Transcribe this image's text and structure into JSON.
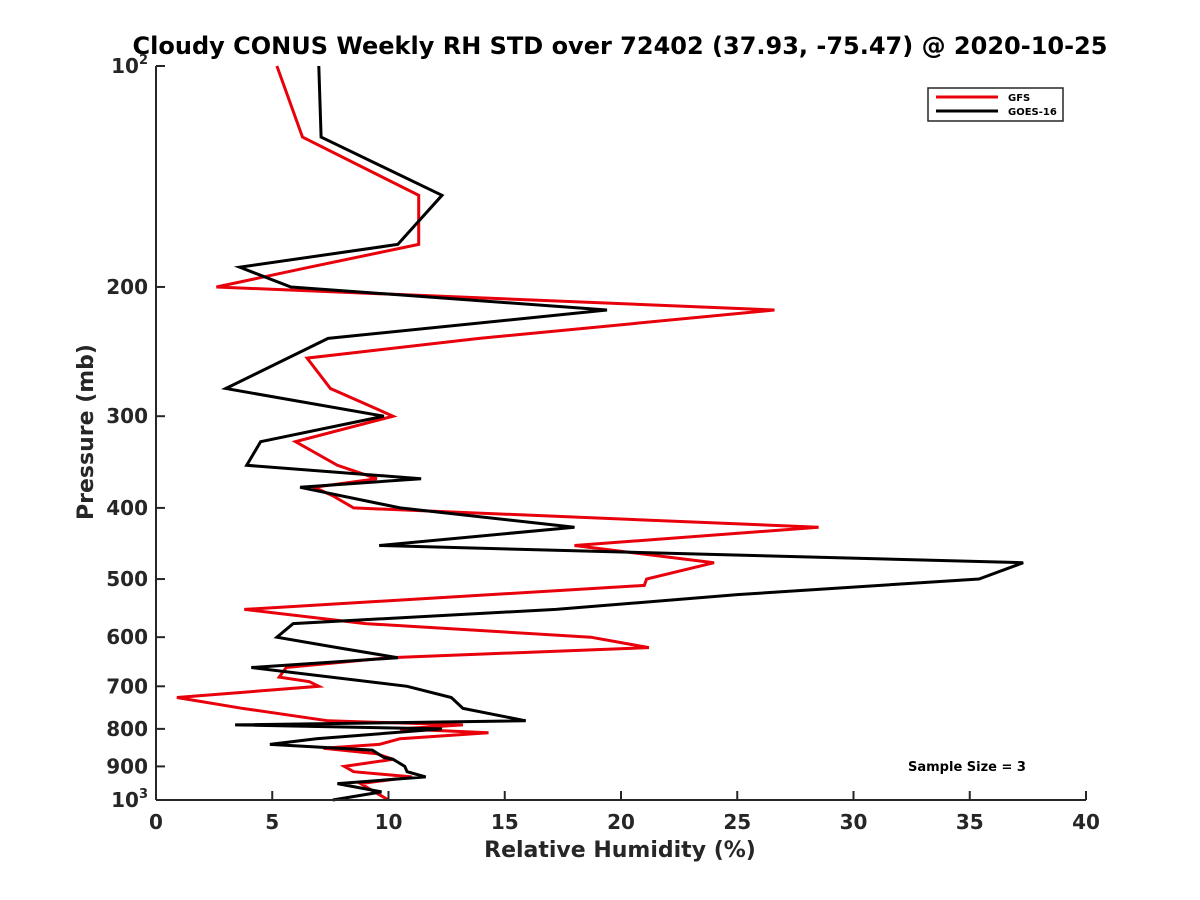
{
  "chart_data": {
    "type": "line",
    "title": "Cloudy CONUS Weekly RH STD over 72402 (37.93, -75.47) @ 2020-10-25",
    "xlabel": "Relative Humidity (%)",
    "ylabel": "Pressure (mb)",
    "xlim": [
      0,
      40
    ],
    "ylim": [
      100,
      1000
    ],
    "y_scale": "log",
    "y_reversed": true,
    "x_ticks": [
      "0",
      "5",
      "10",
      "15",
      "20",
      "25",
      "30",
      "35",
      "40"
    ],
    "x_tick_values": [
      0,
      5,
      10,
      15,
      20,
      25,
      30,
      35,
      40
    ],
    "y_ticks": [
      {
        "value": 100,
        "base": "10",
        "exp": "2",
        "label": ""
      },
      {
        "value": 200,
        "label": "200"
      },
      {
        "value": 300,
        "label": "300"
      },
      {
        "value": 400,
        "label": "400"
      },
      {
        "value": 500,
        "label": "500"
      },
      {
        "value": 600,
        "label": "600"
      },
      {
        "value": 700,
        "label": "700"
      },
      {
        "value": 800,
        "label": "800"
      },
      {
        "value": 900,
        "label": "900"
      },
      {
        "value": 1000,
        "base": "10",
        "exp": "3",
        "label": ""
      }
    ],
    "legend": "top-right",
    "grid": false,
    "annotation": "Sample Size = 3",
    "series": [
      {
        "name": "GFS",
        "color": "#e8000b",
        "points": [
          [
            5.2,
            100
          ],
          [
            6.3,
            125
          ],
          [
            11.3,
            150
          ],
          [
            11.3,
            175
          ],
          [
            6.6,
            188
          ],
          [
            2.6,
            200
          ],
          [
            26.6,
            215
          ],
          [
            13.9,
            235
          ],
          [
            6.5,
            250
          ],
          [
            7.5,
            275
          ],
          [
            10.2,
            300
          ],
          [
            6.0,
            325
          ],
          [
            7.8,
            350
          ],
          [
            9.5,
            365
          ],
          [
            6.8,
            375
          ],
          [
            7.6,
            385
          ],
          [
            8.5,
            400
          ],
          [
            28.5,
            425
          ],
          [
            18.0,
            450
          ],
          [
            24.0,
            475
          ],
          [
            21.1,
            500
          ],
          [
            21.0,
            510
          ],
          [
            3.8,
            550
          ],
          [
            9.0,
            575
          ],
          [
            18.7,
            600
          ],
          [
            21.2,
            620
          ],
          [
            10.0,
            640
          ],
          [
            5.6,
            660
          ],
          [
            5.3,
            680
          ],
          [
            6.6,
            690
          ],
          [
            7.0,
            700
          ],
          [
            0.9,
            725
          ],
          [
            3.7,
            750
          ],
          [
            7.4,
            780
          ],
          [
            13.2,
            790
          ],
          [
            10.5,
            800
          ],
          [
            14.3,
            810
          ],
          [
            10.5,
            825
          ],
          [
            9.6,
            840
          ],
          [
            7.2,
            850
          ],
          [
            9.5,
            865
          ],
          [
            10.2,
            880
          ],
          [
            8.1,
            900
          ],
          [
            8.5,
            915
          ],
          [
            11.0,
            930
          ],
          [
            8.8,
            950
          ],
          [
            9.4,
            975
          ],
          [
            10.0,
            1000
          ]
        ]
      },
      {
        "name": "GOES-16",
        "color": "#000000",
        "points": [
          [
            7.0,
            100
          ],
          [
            7.1,
            125
          ],
          [
            12.3,
            150
          ],
          [
            10.4,
            175
          ],
          [
            3.6,
            188
          ],
          [
            5.8,
            200
          ],
          [
            19.4,
            215
          ],
          [
            7.4,
            235
          ],
          [
            3.0,
            275
          ],
          [
            9.8,
            300
          ],
          [
            4.5,
            325
          ],
          [
            3.9,
            350
          ],
          [
            11.4,
            365
          ],
          [
            6.2,
            375
          ],
          [
            10.5,
            400
          ],
          [
            18.0,
            425
          ],
          [
            9.6,
            450
          ],
          [
            37.3,
            475
          ],
          [
            35.4,
            500
          ],
          [
            25.0,
            525
          ],
          [
            17.2,
            550
          ],
          [
            5.9,
            575
          ],
          [
            5.2,
            600
          ],
          [
            7.8,
            620
          ],
          [
            10.4,
            640
          ],
          [
            4.1,
            660
          ],
          [
            10.8,
            700
          ],
          [
            12.7,
            725
          ],
          [
            13.2,
            750
          ],
          [
            15.9,
            780
          ],
          [
            3.4,
            790
          ],
          [
            12.3,
            800
          ],
          [
            6.9,
            825
          ],
          [
            4.9,
            840
          ],
          [
            9.3,
            855
          ],
          [
            9.8,
            875
          ],
          [
            10.2,
            880
          ],
          [
            10.7,
            900
          ],
          [
            10.8,
            915
          ],
          [
            11.6,
            930
          ],
          [
            7.8,
            950
          ],
          [
            9.7,
            975
          ],
          [
            7.6,
            1000
          ]
        ]
      }
    ]
  }
}
